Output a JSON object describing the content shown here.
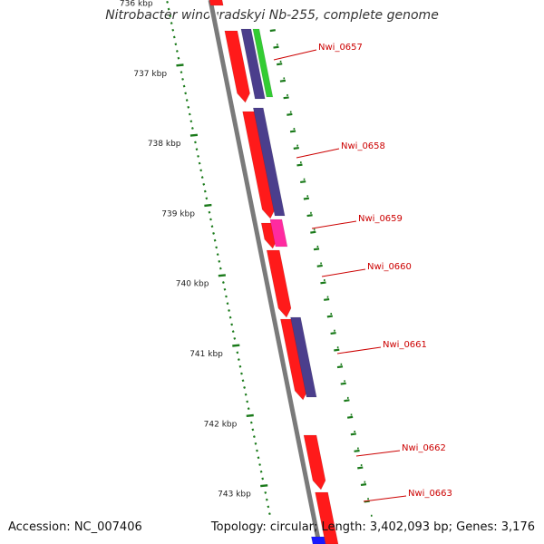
{
  "title": "Nitrobacter winogradskyi Nb-255, complete genome",
  "footer": {
    "accession": "Accession: NC_007406",
    "summary": "Topology: circular; Length: 3,402,093 bp; Genes: 3,176"
  },
  "colors": {
    "backbone": "#7a7a7a",
    "forward_cds": "#ff1a1a",
    "reverse_cds": "#4b3e8c",
    "green_feature": "#33cc33",
    "pink_feature": "#ff2aa0",
    "blue_feature": "#1a1aff",
    "label_text": "#cc0000",
    "scale_ticks": "#1a7a1a"
  },
  "scale": {
    "labels": [
      "736 kbp",
      "737 kbp",
      "738 kbp",
      "739 kbp",
      "740 kbp",
      "741 kbp",
      "742 kbp",
      "743 kbp"
    ]
  },
  "gene_labels": [
    "Nwi_0657",
    "Nwi_0658",
    "Nwi_0659",
    "Nwi_0660",
    "Nwi_0661",
    "Nwi_0662",
    "Nwi_0663"
  ]
}
